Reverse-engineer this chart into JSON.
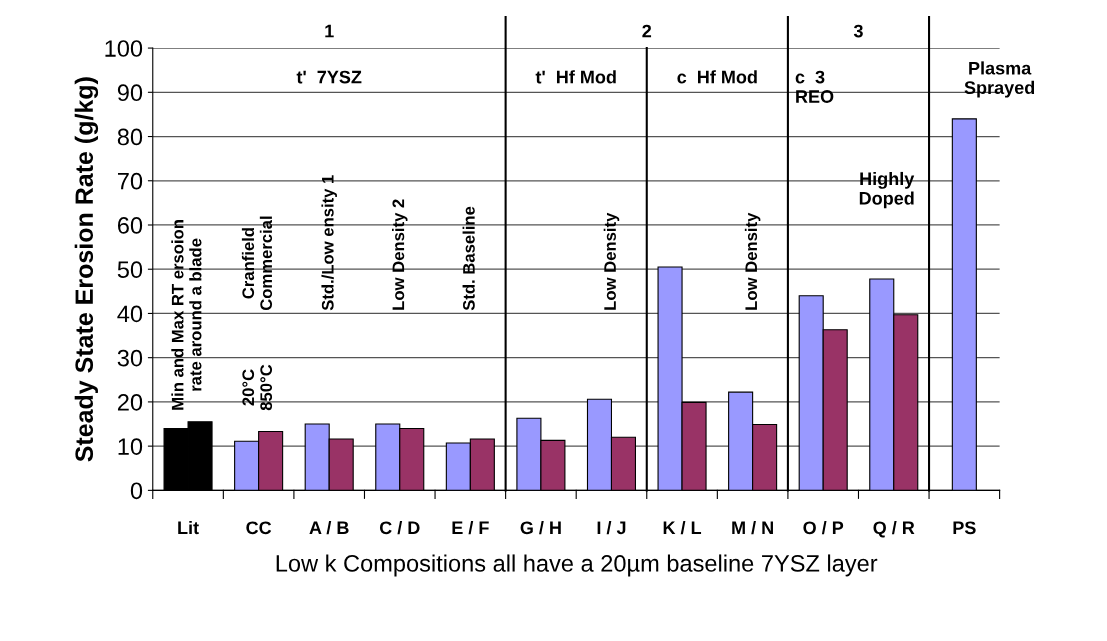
{
  "chart_data": {
    "type": "bar",
    "ylabel": "Steady State Erosion Rate (g/kg)",
    "xlabel": "Low k Compositions all have a 20µm baseline 7YSZ layer",
    "categories": [
      "Lit",
      "CC",
      "A / B",
      "C / D",
      "E / F",
      "G / H",
      "I / J",
      "K / L",
      "M / N",
      "O / P",
      "Q / R",
      "PS"
    ],
    "series": [
      {
        "colors": [
          "#000000",
          "#9999ff",
          "#9999ff",
          "#9999ff",
          "#9999ff",
          "#9999ff",
          "#9999ff",
          "#9999ff",
          "#9999ff",
          "#9999ff",
          "#9999ff",
          "#9999ff"
        ],
        "values": [
          14.0,
          11.1,
          15.0,
          15.0,
          10.7,
          16.3,
          20.6,
          50.5,
          22.2,
          44.0,
          47.8,
          84
        ]
      },
      {
        "colors": [
          "#000000",
          "#993366",
          "#993366",
          "#993366",
          "#993366",
          "#993366",
          "#993366",
          "#993366",
          "#993366",
          "#993366",
          "#993366",
          "#993366"
        ],
        "values": [
          15.5,
          13.3,
          11.6,
          14.0,
          11.6,
          11.3,
          12.0,
          19.9,
          14.9,
          36.3,
          39.7,
          null
        ]
      }
    ],
    "ylim": [
      0,
      100
    ],
    "yticks": [
      0,
      10,
      20,
      30,
      40,
      50,
      60,
      70,
      80,
      90,
      100
    ],
    "grid": "y",
    "annotations": [
      "1",
      "2",
      "3",
      "t'  7YSZ",
      "t'  Hf Mod",
      "c  Hf Mod",
      "c  3\nREO",
      "Plasma\nSprayed",
      "Min and Max RT ersoion\nrate around a blade",
      "20°C\n850°C",
      "Cranfield\nCommercial",
      "Std./Low ensity 1",
      "Low Density 2",
      "Std. Baseline",
      "Low Density",
      "Low Density",
      "Highly\nDoped"
    ]
  }
}
